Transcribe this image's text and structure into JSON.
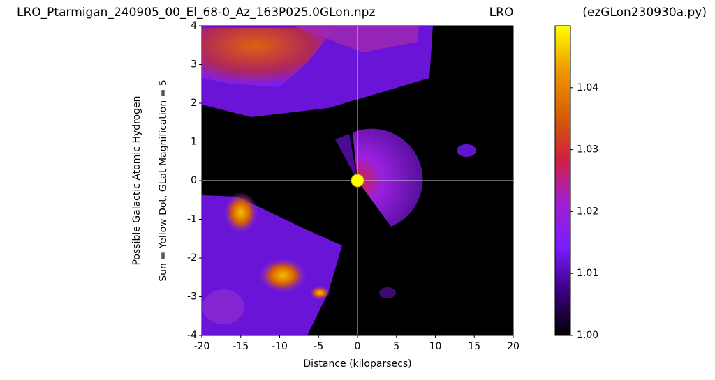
{
  "chart_data": {
    "type": "heatmap",
    "title": "LRO_Ptarmigan_240905_00_El_68-0_Az_163P025.0GLon.npz",
    "title_center": "LRO",
    "title_right": "(ezGLon230930a.py)",
    "xlabel": "Distance (kiloparsecs)",
    "ylabel": [
      "Possible Galactic Atomic Hydrogen",
      "Sun = Yellow Dot, GLat Magnification = 5"
    ],
    "xlim": [
      -20,
      20
    ],
    "ylim": [
      -4,
      4
    ],
    "xticks": [
      -20,
      -15,
      -10,
      -5,
      0,
      5,
      10,
      15,
      20
    ],
    "yticks": [
      -4,
      -3,
      -2,
      -1,
      0,
      1,
      2,
      3,
      4
    ],
    "sun": {
      "x": 0,
      "y": 0,
      "color": "#ffff00"
    },
    "colorbar": {
      "clim": [
        1.0,
        1.05
      ],
      "ticks": [
        {
          "value": 1.0,
          "label": "1.00"
        },
        1.01,
        1.02,
        1.03,
        1.04
      ],
      "colors": [
        "#000000",
        "#3a0080",
        "#7a1cff",
        "#a020d0",
        "#d02040",
        "#d86000",
        "#ee9900",
        "#ffff00"
      ]
    }
  }
}
